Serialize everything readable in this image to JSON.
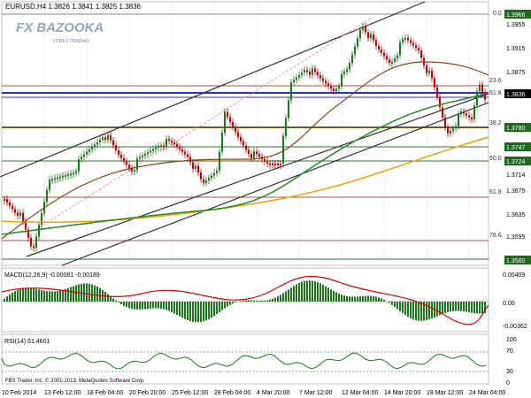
{
  "header": {
    "symbol_line": "EURUSD,H4  1.3826 1.3841 1.3825 1.3836",
    "logo_text": "FX BAZOOKA",
    "logo_sub": "FOREX TRADING"
  },
  "price_axis": {
    "labels": [
      "1.3966",
      "1.3955",
      "1.3915",
      "1.3875",
      "1.3836",
      "1.3780",
      "1.3747",
      "1.3724",
      "1.3714",
      "1.3675",
      "1.3635",
      "1.3595",
      "1.3560"
    ],
    "highlight_color": "#1a6b1a",
    "current_color": "#000000"
  },
  "fib_levels": [
    "0.0",
    "23.6",
    "61.8",
    "38.2",
    "50.0",
    "61.8",
    "78.6"
  ],
  "macd": {
    "label": "MACD(12,26,9) -0.00081 -0.00189",
    "axis": [
      "0.00409",
      "0.00",
      "-0.00362"
    ]
  },
  "rsi": {
    "label": "RSI(14) 51.4601",
    "axis": [
      "100",
      "70",
      "30",
      "0"
    ]
  },
  "time_axis": [
    "10 Feb 2014",
    "13 Feb 12:00",
    "18 Feb 04:00",
    "20 Feb 20:00",
    "25 Feb 12:00",
    "28 Feb 04:00",
    "4 Mar 20:00",
    "7 Mar 12:00",
    "12 Mar 04:00",
    "14 Mar 20:00",
    "19 Mar 12:00",
    "24 Mar 04:00"
  ],
  "footer": "FBS Trader, Inc. © 2001-2013, MetaQuotes Software Corp.",
  "colors": {
    "up": "#1a7a1a",
    "down": "#cc0000",
    "ma_green": "#228b22",
    "ma_brown": "#8b4513",
    "ma_orange": "#f0a000",
    "channel": "#303030",
    "hline_blue": "#3030c0"
  }
}
